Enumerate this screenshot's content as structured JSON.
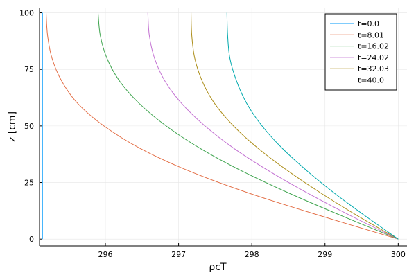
{
  "chart_data": {
    "type": "line",
    "xlabel": "ρcT",
    "ylabel": "z [cm]",
    "xlim": [
      295.1,
      300.12
    ],
    "ylim": [
      -3,
      102
    ],
    "x_ticks": [
      296,
      297,
      298,
      299,
      300
    ],
    "x_tick_labels": [
      "296",
      "297",
      "298",
      "299",
      "300"
    ],
    "y_ticks": [
      0,
      25,
      50,
      75,
      100
    ],
    "y_tick_labels": [
      "0",
      "25",
      "50",
      "75",
      "100"
    ],
    "grid": true,
    "legend_position": "top-right",
    "series": [
      {
        "name": "t=0.0",
        "color": "#009AFA",
        "points": [
          [
            295.14,
            0
          ],
          [
            295.14,
            100
          ]
        ]
      },
      {
        "name": "t=8.01",
        "color": "#E36F47",
        "points": [
          [
            300.0,
            0
          ],
          [
            298.97,
            10
          ],
          [
            297.99,
            20
          ],
          [
            297.15,
            30
          ],
          [
            296.48,
            40
          ],
          [
            295.98,
            50
          ],
          [
            295.62,
            60
          ],
          [
            295.4,
            70
          ],
          [
            295.27,
            80
          ],
          [
            295.21,
            90
          ],
          [
            295.19,
            100
          ]
        ]
      },
      {
        "name": "t=16.02",
        "color": "#3EA44E",
        "points": [
          [
            300.0,
            0
          ],
          [
            299.25,
            10
          ],
          [
            298.53,
            20
          ],
          [
            297.87,
            30
          ],
          [
            297.3,
            40
          ],
          [
            296.83,
            50
          ],
          [
            296.46,
            60
          ],
          [
            296.19,
            70
          ],
          [
            296.02,
            80
          ],
          [
            295.93,
            90
          ],
          [
            295.9,
            100
          ]
        ]
      },
      {
        "name": "t=24.02",
        "color": "#C371D2",
        "points": [
          [
            300.0,
            0
          ],
          [
            299.37,
            10
          ],
          [
            298.78,
            20
          ],
          [
            298.24,
            30
          ],
          [
            297.76,
            40
          ],
          [
            297.36,
            50
          ],
          [
            297.04,
            60
          ],
          [
            296.81,
            70
          ],
          [
            296.67,
            80
          ],
          [
            296.6,
            90
          ],
          [
            296.58,
            100
          ]
        ]
      },
      {
        "name": "t=32.03",
        "color": "#AC8D18",
        "points": [
          [
            300.0,
            0
          ],
          [
            299.46,
            10
          ],
          [
            298.96,
            20
          ],
          [
            298.5,
            30
          ],
          [
            298.09,
            40
          ],
          [
            297.75,
            50
          ],
          [
            297.49,
            60
          ],
          [
            297.32,
            70
          ],
          [
            297.22,
            80
          ],
          [
            297.18,
            90
          ],
          [
            297.17,
            100
          ]
        ]
      },
      {
        "name": "t=40.0",
        "color": "#00A9AD",
        "points": [
          [
            300.0,
            0
          ],
          [
            299.56,
            10
          ],
          [
            299.14,
            20
          ],
          [
            298.76,
            30
          ],
          [
            298.42,
            40
          ],
          [
            298.14,
            50
          ],
          [
            297.93,
            60
          ],
          [
            297.79,
            70
          ],
          [
            297.7,
            80
          ],
          [
            297.67,
            90
          ],
          [
            297.66,
            100
          ]
        ]
      }
    ]
  }
}
